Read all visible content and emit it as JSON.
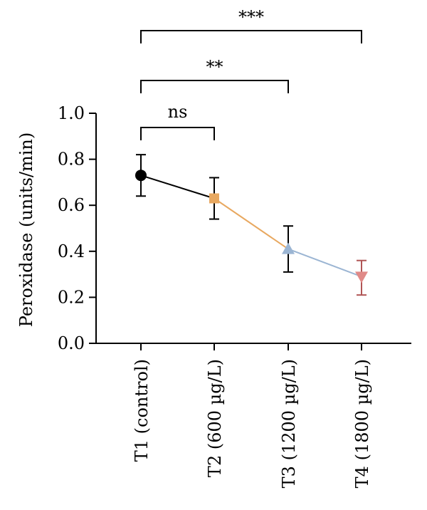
{
  "chart_data": {
    "type": "line",
    "title": "",
    "xlabel": "",
    "ylabel": "Peroxidase (units/min)",
    "ylim": [
      0.0,
      1.0
    ],
    "yticks": [
      0.0,
      0.2,
      0.4,
      0.6,
      0.8,
      1.0
    ],
    "ytick_labels": [
      "0.0",
      "0.2",
      "0.4",
      "0.6",
      "0.8",
      "1.0"
    ],
    "categories": [
      "T1 (control)",
      "T2 (600 µg/L)",
      "T3 (1200 µg/L)",
      "T4 (1800 µg/L)"
    ],
    "points": [
      {
        "category": "T1 (control)",
        "value": 0.73,
        "error_low": 0.64,
        "error_high": 0.82,
        "marker": "circle",
        "color": "#000000"
      },
      {
        "category": "T2 (600 µg/L)",
        "value": 0.63,
        "error_low": 0.54,
        "error_high": 0.72,
        "marker": "square",
        "color": "#E8A860"
      },
      {
        "category": "T3 (1200 µg/L)",
        "value": 0.41,
        "error_low": 0.31,
        "error_high": 0.51,
        "marker": "triangle-up",
        "color": "#9BB5D3"
      },
      {
        "category": "T4 (1800 µg/L)",
        "value": 0.29,
        "error_low": 0.21,
        "error_high": 0.36,
        "marker": "triangle-down",
        "color": "#E08A88"
      }
    ],
    "segment_colors": [
      "#000000",
      "#E8A860",
      "#9BB5D3"
    ],
    "errorbar_colors": [
      "#000000",
      "#000000",
      "#000000",
      "#B05555"
    ],
    "significance": [
      {
        "from": 0,
        "to": 1,
        "label": "ns"
      },
      {
        "from": 0,
        "to": 2,
        "label": "**"
      },
      {
        "from": 0,
        "to": 3,
        "label": "***"
      }
    ],
    "grid": false
  }
}
